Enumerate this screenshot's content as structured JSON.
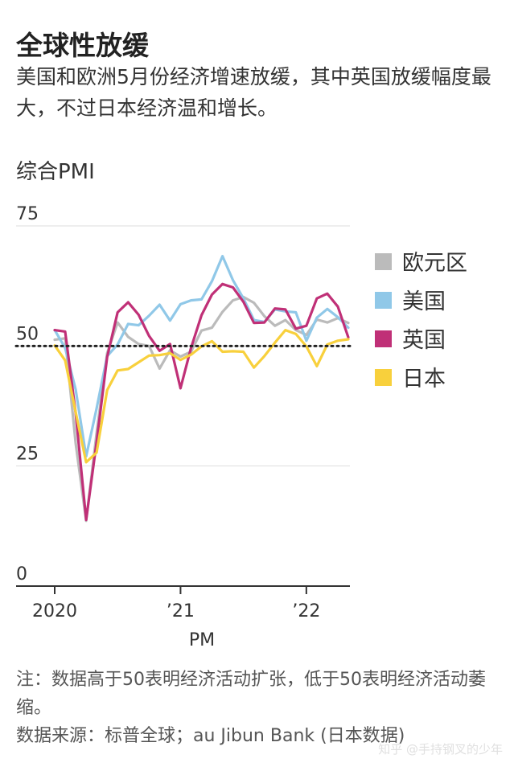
{
  "title": "全球性放缓",
  "subtitle": "美国和欧洲5月份经济增速放缓，其中英国放缓幅度最大，不过日本经济温和增长。",
  "note": "注：数据高于50表明经济活动扩张，低于50表明经济活动萎缩。",
  "source": "数据来源：标普全球；au Jibun Bank (日本数据)",
  "watermark": "知乎 @手持钢叉的少年",
  "chart_data": {
    "type": "line",
    "ylabel": "综合PMI",
    "xlabel": "PM",
    "ylim": [
      0,
      75
    ],
    "yticks": [
      0,
      25,
      50,
      75
    ],
    "xlim": [
      "2020-01",
      "2022-05"
    ],
    "xticks": [
      {
        "x": "2020-01",
        "label": "2020"
      },
      {
        "x": "2021-01",
        "label": "’21"
      },
      {
        "x": "2022-01",
        "label": "’22"
      }
    ],
    "reference_line": {
      "y": 50,
      "style": "dotted"
    },
    "x": [
      "2020-01",
      "2020-02",
      "2020-03",
      "2020-04",
      "2020-05",
      "2020-06",
      "2020-07",
      "2020-08",
      "2020-09",
      "2020-10",
      "2020-11",
      "2020-12",
      "2021-01",
      "2021-02",
      "2021-03",
      "2021-04",
      "2021-05",
      "2021-06",
      "2021-07",
      "2021-08",
      "2021-09",
      "2021-10",
      "2021-11",
      "2021-12",
      "2022-01",
      "2022-02",
      "2022-03",
      "2022-04",
      "2022-05"
    ],
    "series": [
      {
        "name": "欧元区",
        "color": "#bbbbbb",
        "values": [
          51.3,
          51.6,
          29.7,
          13.6,
          31.9,
          48.5,
          54.9,
          51.9,
          50.4,
          50.0,
          45.3,
          49.1,
          47.8,
          48.8,
          53.2,
          53.8,
          57.1,
          59.5,
          60.2,
          59.0,
          56.2,
          54.2,
          55.4,
          53.3,
          52.3,
          55.5,
          54.9,
          55.8,
          54.8
        ]
      },
      {
        "name": "美国",
        "color": "#90c8e8",
        "values": [
          53.3,
          49.6,
          40.9,
          27.0,
          37.0,
          47.9,
          50.3,
          54.6,
          54.3,
          56.3,
          58.6,
          55.3,
          58.7,
          59.5,
          59.7,
          63.5,
          68.7,
          63.7,
          59.9,
          55.4,
          55.0,
          57.6,
          57.2,
          57.0,
          51.1,
          55.9,
          57.7,
          56.0,
          53.8
        ]
      },
      {
        "name": "英国",
        "color": "#c03077",
        "values": [
          53.3,
          53.0,
          36.0,
          13.8,
          30.0,
          47.7,
          57.0,
          59.1,
          56.5,
          52.1,
          49.0,
          50.4,
          41.2,
          49.6,
          56.4,
          60.7,
          62.9,
          62.2,
          59.2,
          54.8,
          54.9,
          57.8,
          57.6,
          53.6,
          54.2,
          59.9,
          60.9,
          58.2,
          51.8
        ]
      },
      {
        "name": "日本",
        "color": "#f8d03c",
        "values": [
          50.1,
          47.0,
          36.2,
          25.8,
          27.8,
          40.8,
          44.9,
          45.2,
          46.6,
          48.0,
          48.1,
          48.5,
          47.1,
          48.2,
          49.9,
          51.0,
          48.8,
          48.9,
          48.8,
          45.5,
          47.9,
          50.7,
          53.3,
          52.5,
          49.9,
          45.8,
          50.3,
          51.1,
          51.4
        ]
      }
    ]
  }
}
